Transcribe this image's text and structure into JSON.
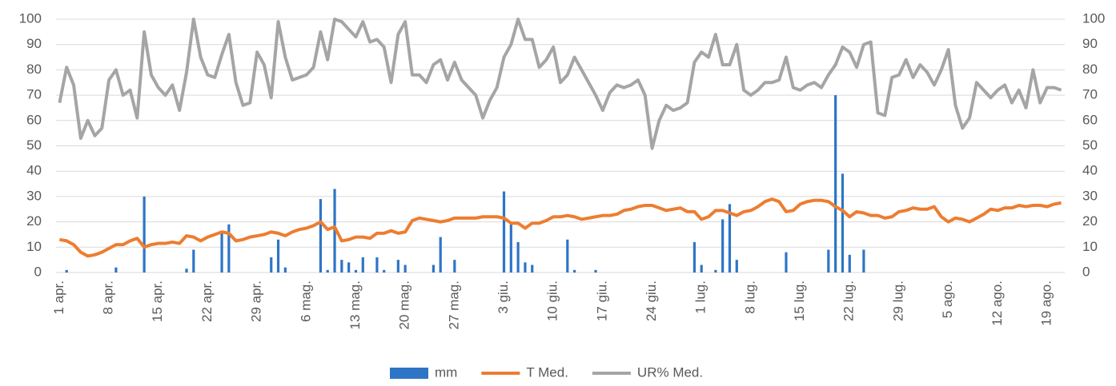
{
  "chart_data": {
    "type": "bar-line",
    "categories": [
      "1 apr.",
      null,
      null,
      null,
      null,
      null,
      null,
      "8 apr.",
      null,
      null,
      null,
      null,
      null,
      null,
      "15 apr.",
      null,
      null,
      null,
      null,
      null,
      null,
      "22 apr.",
      null,
      null,
      null,
      null,
      null,
      null,
      "29 apr.",
      null,
      null,
      null,
      null,
      null,
      null,
      "6 mag.",
      null,
      null,
      null,
      null,
      null,
      null,
      "13 mag.",
      null,
      null,
      null,
      null,
      null,
      null,
      "20 mag.",
      null,
      null,
      null,
      null,
      null,
      null,
      "27 mag.",
      null,
      null,
      null,
      null,
      null,
      null,
      "3 giu.",
      null,
      null,
      null,
      null,
      null,
      null,
      "10 giu.",
      null,
      null,
      null,
      null,
      null,
      null,
      "17 giu.",
      null,
      null,
      null,
      null,
      null,
      null,
      "24 giu.",
      null,
      null,
      null,
      null,
      null,
      null,
      "1 lug.",
      null,
      null,
      null,
      null,
      null,
      null,
      "8 lug.",
      null,
      null,
      null,
      null,
      null,
      null,
      "15 lug.",
      null,
      null,
      null,
      null,
      null,
      null,
      "22 lug.",
      null,
      null,
      null,
      null,
      null,
      null,
      "29 lug.",
      null,
      null,
      null,
      null,
      null,
      null,
      "5 ago.",
      null,
      null,
      null,
      null,
      null,
      null,
      "12 ago.",
      null,
      null,
      null,
      null,
      null,
      null,
      "19 ago.",
      null,
      null
    ],
    "series": [
      {
        "name": "mm",
        "type": "bar",
        "color": "#2e75c6",
        "values": [
          0,
          1,
          0,
          0,
          0,
          0,
          0,
          0,
          2,
          0,
          0,
          0,
          30,
          0,
          0,
          0,
          0,
          0,
          1.5,
          9,
          0,
          0,
          0,
          16,
          19,
          0,
          0,
          0,
          0,
          0,
          6,
          13,
          2,
          0,
          0,
          0,
          0,
          29,
          1,
          33,
          5,
          4,
          1,
          6,
          0,
          6,
          1,
          0,
          5,
          3,
          0,
          0,
          0,
          3,
          14,
          0,
          5,
          0,
          0,
          0,
          0,
          0,
          0,
          32,
          19,
          12,
          4,
          3,
          0,
          0,
          0,
          0,
          13,
          1,
          0,
          0,
          1,
          0,
          0,
          0,
          0,
          0,
          0,
          0,
          0,
          0,
          0,
          0,
          0,
          0,
          12,
          3,
          0,
          1,
          21,
          27,
          5,
          0,
          0,
          0,
          0,
          0,
          0,
          8,
          0,
          0,
          0,
          0,
          0,
          9,
          70,
          39,
          7,
          0,
          9,
          0,
          0,
          0,
          0,
          0,
          0,
          0,
          0,
          0,
          0,
          0,
          0,
          0,
          0,
          0,
          0,
          0,
          0,
          0,
          0,
          0,
          0,
          0,
          0,
          0,
          0,
          0,
          0
        ]
      },
      {
        "name": "T Med.",
        "type": "line",
        "color": "#ed7d31",
        "values": [
          13,
          12.5,
          11,
          8,
          6.5,
          7,
          8,
          9.5,
          11,
          11,
          12.5,
          13.5,
          10,
          11,
          11.5,
          11.5,
          12,
          11.5,
          14.5,
          14,
          12.5,
          14,
          15,
          16,
          15.5,
          12.5,
          13,
          14,
          14.5,
          15,
          16,
          15.5,
          14.5,
          16,
          17,
          17.5,
          18.5,
          20,
          17,
          18,
          12.5,
          13,
          14,
          14,
          13.5,
          15.5,
          15.5,
          16.5,
          15.5,
          16,
          20.5,
          21.5,
          21,
          20.5,
          20,
          20.5,
          21.5,
          21.5,
          21.5,
          21.5,
          22,
          22,
          22,
          21.5,
          19.5,
          19.5,
          17.5,
          19.5,
          19.5,
          20.5,
          22,
          22,
          22.5,
          22,
          21,
          21.5,
          22,
          22.5,
          22.5,
          23,
          24.5,
          25,
          26,
          26.5,
          26.5,
          25.5,
          24.5,
          25,
          25.5,
          24,
          24,
          21,
          22,
          24.5,
          24.5,
          23.5,
          22.5,
          24,
          24.5,
          26,
          28,
          29,
          28,
          24,
          24.5,
          27,
          28,
          28.5,
          28.5,
          28,
          26,
          24.5,
          22,
          24,
          23.5,
          22.5,
          22.5,
          21.5,
          22,
          24,
          24.5,
          25.5,
          25,
          25,
          26,
          22,
          20,
          21.5,
          21,
          20,
          21.5,
          23,
          25,
          24.5,
          25.5,
          25.5,
          26.5,
          26,
          26.5,
          26.5,
          26,
          27,
          27.5
        ]
      },
      {
        "name": "UR% Med.",
        "type": "line",
        "axis": "y2",
        "color": "#a5a5a5",
        "values": [
          67,
          81,
          74,
          53,
          60,
          54,
          57,
          76,
          80,
          70,
          72,
          61,
          95,
          78,
          73,
          70,
          74,
          64,
          79,
          100,
          85,
          78,
          77,
          86,
          94,
          75,
          66,
          67,
          87,
          82,
          69,
          99,
          85,
          76,
          77,
          78,
          81,
          95,
          84,
          100,
          99,
          96,
          93,
          99,
          91,
          92,
          89,
          75,
          94,
          99,
          78,
          78,
          75,
          82,
          84,
          76,
          83,
          76,
          73,
          70,
          61,
          68,
          73,
          85,
          90,
          100,
          92,
          92,
          81,
          84,
          89,
          75,
          78,
          85,
          80,
          75,
          70,
          64,
          71,
          74,
          73,
          74,
          76,
          70,
          49,
          60,
          66,
          64,
          65,
          67,
          83,
          87,
          85,
          94,
          82,
          82,
          90,
          72,
          70,
          72,
          75,
          75,
          76,
          85,
          73,
          72,
          74,
          75,
          73,
          78,
          82,
          89,
          87,
          81,
          90,
          91,
          63,
          62,
          77,
          78,
          84,
          77,
          82,
          79,
          74,
          80,
          88,
          66,
          57,
          61,
          75,
          72,
          69,
          72,
          74,
          67,
          72,
          65,
          80,
          67,
          73,
          73,
          72
        ]
      }
    ],
    "ylim": [
      0,
      100
    ],
    "yticks": [
      0,
      10,
      20,
      30,
      40,
      50,
      60,
      70,
      80,
      90,
      100
    ],
    "y2lim": [
      0,
      100
    ],
    "y2ticks": [
      0,
      10,
      20,
      30,
      40,
      50,
      60,
      70,
      80,
      90,
      100
    ],
    "grid": true,
    "legend": "bottom"
  }
}
